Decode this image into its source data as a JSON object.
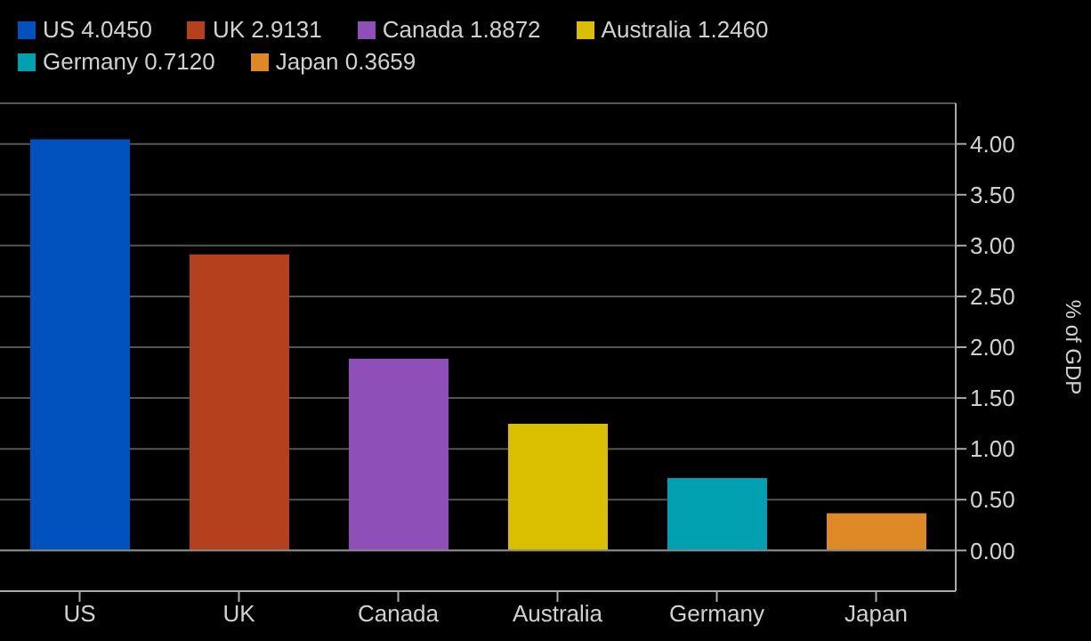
{
  "chart_data": {
    "type": "bar",
    "y2label": "% of GDP",
    "stacked": true,
    "categories": [
      "US",
      "UK",
      "Canada",
      "Australia",
      "Germany",
      "Japan"
    ],
    "series": [
      {
        "name": "US 4.0450",
        "color": "#0050be",
        "values": [
          4.045,
          null,
          null,
          null,
          null,
          null
        ]
      },
      {
        "name": "UK 2.9131",
        "color": "#b5401e",
        "values": [
          null,
          2.9131,
          null,
          null,
          null,
          null
        ]
      },
      {
        "name": "Canada 1.8872",
        "color": "#8e50b8",
        "values": [
          null,
          null,
          1.8872,
          null,
          null,
          null
        ]
      },
      {
        "name": "Australia 1.2460",
        "color": "#d9bf00",
        "values": [
          null,
          null,
          null,
          1.246,
          null,
          null
        ]
      },
      {
        "name": "Germany 0.7120",
        "color": "#00a0b0",
        "values": [
          null,
          null,
          null,
          null,
          0.712,
          null
        ]
      },
      {
        "name": "Japan 0.3659",
        "color": "#dd8a26",
        "values": [
          null,
          null,
          null,
          null,
          null,
          0.3659
        ]
      }
    ],
    "ylim": [
      -0.4,
      4.4
    ],
    "yticks": [
      {
        "value": 0,
        "label": "0.00"
      },
      {
        "value": 0.5,
        "label": "0.50"
      },
      {
        "value": 1,
        "label": "1.00"
      },
      {
        "value": 1.5,
        "label": "1.50"
      },
      {
        "value": 2,
        "label": "2.00"
      },
      {
        "value": 2.5,
        "label": "2.50"
      },
      {
        "value": 3,
        "label": "3.00"
      },
      {
        "value": 3.5,
        "label": "3.50"
      },
      {
        "value": 4,
        "label": "4.00"
      }
    ],
    "grid": "y",
    "legend": "top left"
  }
}
